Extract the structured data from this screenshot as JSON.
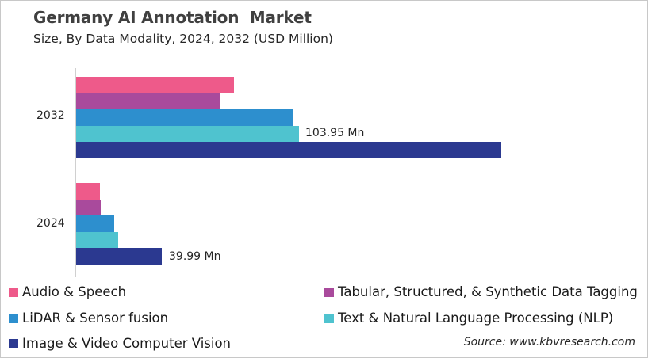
{
  "chart_data": {
    "type": "bar",
    "orientation": "horizontal",
    "title": "Germany AI Annotation  Market",
    "subtitle": "Size, By Data Modality, 2024, 2032 (USD Million)",
    "xlabel": "",
    "ylabel": "",
    "categories": [
      "2032",
      "2024"
    ],
    "series": [
      {
        "name": "Audio & Speech",
        "color": "#EE5A8A",
        "values": [
          73.6,
          11.1
        ]
      },
      {
        "name": "Tabular, Structured, & Synthetic Data Tagging",
        "color": "#A94A9C",
        "values": [
          67.0,
          11.5
        ]
      },
      {
        "name": "LiDAR & Sensor fusion",
        "color": "#2D8FCE",
        "values": [
          101.4,
          17.8
        ]
      },
      {
        "name": "Text & Natural Language Processing (NLP)",
        "color": "#4FC3CF",
        "values": [
          103.95,
          19.6
        ]
      },
      {
        "name": "Image & Video Computer Vision",
        "color": "#2B3990",
        "values": [
          198.3,
          39.99
        ]
      }
    ],
    "annotations": [
      {
        "category": "2032",
        "series": "Text & Natural Language Processing (NLP)",
        "text": "103.95 Mn"
      },
      {
        "category": "2024",
        "series": "Image & Video Computer Vision",
        "text": "39.99 Mn"
      }
    ],
    "grid": false,
    "legend_position": "bottom",
    "xlim": [
      0,
      210
    ]
  },
  "header": {
    "title": "Germany AI Annotation  Market",
    "subtitle": "Size, By Data Modality, 2024, 2032 (USD Million)"
  },
  "axis": {
    "categories": [
      "2032",
      "2024"
    ]
  },
  "labels": {
    "label_2032": "103.95 Mn",
    "label_2024": "39.99 Mn"
  },
  "legend": {
    "items": [
      {
        "label": "Audio & Speech",
        "color": "#EE5A8A"
      },
      {
        "label": "Tabular, Structured, & Synthetic Data Tagging",
        "color": "#A94A9C"
      },
      {
        "label": "LiDAR & Sensor fusion",
        "color": "#2D8FCE"
      },
      {
        "label": "Text & Natural Language Processing (NLP)",
        "color": "#4FC3CF"
      },
      {
        "label": "Image & Video Computer Vision",
        "color": "#2B3990"
      }
    ]
  },
  "source": "Source: www.kbvresearch.com"
}
